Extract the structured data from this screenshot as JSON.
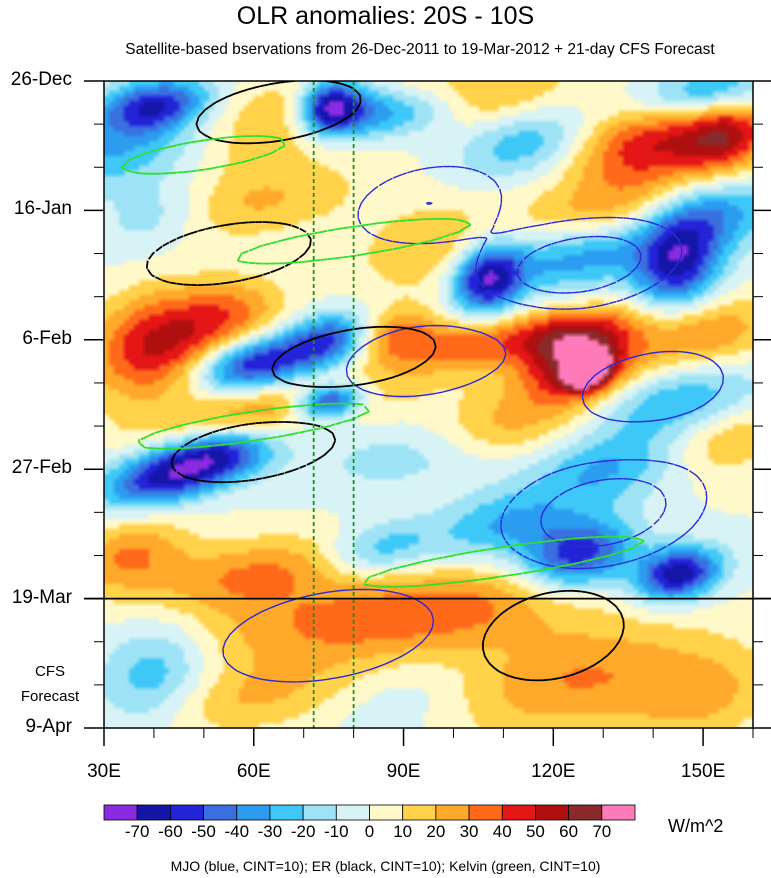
{
  "chart_data": {
    "type": "heatmap",
    "title": "OLR anomalies: 20S - 10S",
    "subtitle": "Satellite-based bservations from 26-Dec-2011 to 19-Mar-2012 + 21-day CFS Forecast",
    "x_axis": {
      "range": [
        30,
        160
      ],
      "ticks": [
        30,
        60,
        90,
        120,
        150
      ],
      "tick_labels": [
        "30E",
        "60E",
        "90E",
        "120E",
        "150E"
      ]
    },
    "y_axis": {
      "range_days": [
        0,
        105
      ],
      "ticks": [
        0,
        21,
        42,
        63,
        84,
        105
      ],
      "tick_labels": [
        "26-Dec",
        "16-Jan",
        "6-Feb",
        "27-Feb",
        "19-Mar",
        "9-Apr"
      ],
      "forecast_label": [
        "CFS",
        "Forecast"
      ],
      "observation_end_day": 84
    },
    "reference_longitudes": [
      72,
      80
    ],
    "colorbar": {
      "levels": [
        -70,
        -60,
        -50,
        -40,
        -30,
        -20,
        -10,
        0,
        10,
        20,
        30,
        40,
        50,
        60,
        70
      ],
      "level_labels": [
        "-70",
        "-60",
        "-50",
        "-40",
        "-30",
        "-20",
        "-10",
        "0",
        "10",
        "20",
        "30",
        "40",
        "50",
        "60",
        "70"
      ],
      "colors": [
        "#8a2be2",
        "#1515a8",
        "#2323d8",
        "#3a6fe0",
        "#2b9cf0",
        "#3ec8f8",
        "#9ee3f5",
        "#d8f3f5",
        "#fff8c8",
        "#ffd24a",
        "#ffa92a",
        "#ff6a1a",
        "#e41616",
        "#b00f0f",
        "#8a2a2a",
        "#ff7ab8"
      ],
      "units": "W/m^2"
    },
    "contours": [
      {
        "name": "MJO",
        "color": "#2a2ad8",
        "cint": 10
      },
      {
        "name": "ER",
        "color": "#000000",
        "cint": 10
      },
      {
        "name": "Kelvin",
        "color": "#2ee02e",
        "cint": 10
      }
    ],
    "footnote": "MJO (blue, CINT=10); ER (black, CINT=10); Kelvin (green, CINT=10)",
    "field_features": [
      {
        "lon": 30,
        "day": 12,
        "value": -30,
        "sx": 25,
        "sy": 4
      },
      {
        "lon": 40,
        "day": 4,
        "value": -60,
        "sx": 8,
        "sy": 3
      },
      {
        "lon": 60,
        "day": 8,
        "value": 30,
        "sx": 12,
        "sy": 5
      },
      {
        "lon": 75,
        "day": 4,
        "value": -60,
        "sx": 4,
        "sy": 3
      },
      {
        "lon": 80,
        "day": 5,
        "value": -40,
        "sx": 6,
        "sy": 3
      },
      {
        "lon": 92,
        "day": 5,
        "value": -40,
        "sx": 8,
        "sy": 3
      },
      {
        "lon": 100,
        "day": 3,
        "value": 30,
        "sx": 15,
        "sy": 4
      },
      {
        "lon": 115,
        "day": 10,
        "value": -30,
        "sx": 10,
        "sy": 4
      },
      {
        "lon": 140,
        "day": 10,
        "value": 50,
        "sx": 12,
        "sy": 5
      },
      {
        "lon": 155,
        "day": 9,
        "value": 40,
        "sx": 6,
        "sy": 4
      },
      {
        "lon": 150,
        "day": 2,
        "value": -40,
        "sx": 10,
        "sy": 3
      },
      {
        "lon": 60,
        "day": 20,
        "value": 20,
        "sx": 15,
        "sy": 4
      },
      {
        "lon": 40,
        "day": 22,
        "value": -20,
        "sx": 8,
        "sy": 4
      },
      {
        "lon": 107,
        "day": 32,
        "value": -70,
        "sx": 5,
        "sy": 4
      },
      {
        "lon": 95,
        "day": 27,
        "value": 20,
        "sx": 10,
        "sy": 5
      },
      {
        "lon": 130,
        "day": 22,
        "value": 30,
        "sx": 12,
        "sy": 4
      },
      {
        "lon": 145,
        "day": 30,
        "value": -60,
        "sx": 6,
        "sy": 5
      },
      {
        "lon": 125,
        "day": 28,
        "value": -40,
        "sx": 10,
        "sy": 4
      },
      {
        "lon": 150,
        "day": 22,
        "value": -40,
        "sx": 10,
        "sy": 4
      },
      {
        "lon": 40,
        "day": 43,
        "value": 50,
        "sx": 9,
        "sy": 6
      },
      {
        "lon": 55,
        "day": 38,
        "value": 30,
        "sx": 8,
        "sy": 4
      },
      {
        "lon": 60,
        "day": 46,
        "value": -60,
        "sx": 8,
        "sy": 3
      },
      {
        "lon": 75,
        "day": 42,
        "value": -50,
        "sx": 6,
        "sy": 3
      },
      {
        "lon": 88,
        "day": 41,
        "value": 30,
        "sx": 6,
        "sy": 3
      },
      {
        "lon": 100,
        "day": 43,
        "value": 30,
        "sx": 10,
        "sy": 3
      },
      {
        "lon": 125,
        "day": 46,
        "value": 60,
        "sx": 8,
        "sy": 4
      },
      {
        "lon": 127,
        "day": 47,
        "value": 75,
        "sx": 3,
        "sy": 2
      },
      {
        "lon": 122,
        "day": 41,
        "value": 40,
        "sx": 10,
        "sy": 3
      },
      {
        "lon": 150,
        "day": 41,
        "value": 30,
        "sx": 10,
        "sy": 4
      },
      {
        "lon": 65,
        "day": 53,
        "value": 30,
        "sx": 18,
        "sy": 3
      },
      {
        "lon": 75,
        "day": 52,
        "value": -70,
        "sx": 5,
        "sy": 2
      },
      {
        "lon": 52,
        "day": 61,
        "value": -60,
        "sx": 8,
        "sy": 3
      },
      {
        "lon": 40,
        "day": 65,
        "value": -50,
        "sx": 8,
        "sy": 3
      },
      {
        "lon": 95,
        "day": 60,
        "value": -20,
        "sx": 15,
        "sy": 4
      },
      {
        "lon": 145,
        "day": 52,
        "value": -30,
        "sx": 12,
        "sy": 4
      },
      {
        "lon": 110,
        "day": 56,
        "value": 30,
        "sx": 12,
        "sy": 4
      },
      {
        "lon": 130,
        "day": 63,
        "value": -30,
        "sx": 10,
        "sy": 4
      },
      {
        "lon": 155,
        "day": 58,
        "value": 20,
        "sx": 8,
        "sy": 4
      },
      {
        "lon": 35,
        "day": 77,
        "value": 30,
        "sx": 8,
        "sy": 4
      },
      {
        "lon": 60,
        "day": 80,
        "value": 30,
        "sx": 15,
        "sy": 4
      },
      {
        "lon": 85,
        "day": 76,
        "value": -30,
        "sx": 8,
        "sy": 3
      },
      {
        "lon": 125,
        "day": 77,
        "value": -60,
        "sx": 8,
        "sy": 4
      },
      {
        "lon": 145,
        "day": 80,
        "value": -70,
        "sx": 6,
        "sy": 3
      },
      {
        "lon": 110,
        "day": 72,
        "value": -30,
        "sx": 10,
        "sy": 4
      },
      {
        "lon": 100,
        "day": 86,
        "value": 30,
        "sx": 20,
        "sy": 5
      },
      {
        "lon": 70,
        "day": 88,
        "value": 20,
        "sx": 20,
        "sy": 5
      },
      {
        "lon": 40,
        "day": 96,
        "value": -30,
        "sx": 8,
        "sy": 6
      },
      {
        "lon": 60,
        "day": 100,
        "value": 20,
        "sx": 15,
        "sy": 4
      },
      {
        "lon": 90,
        "day": 100,
        "value": -10,
        "sx": 10,
        "sy": 5
      },
      {
        "lon": 125,
        "day": 97,
        "value": 30,
        "sx": 18,
        "sy": 6
      },
      {
        "lon": 150,
        "day": 100,
        "value": 20,
        "sx": 10,
        "sy": 5
      }
    ],
    "mjo_contours": [
      {
        "lon": 95,
        "day": 20,
        "value": -20,
        "sx": 12,
        "sy": 5
      },
      {
        "lon": 125,
        "day": 30,
        "value": -30,
        "sx": 14,
        "sy": 5
      },
      {
        "lon": 130,
        "day": 70,
        "value": -30,
        "sx": 14,
        "sy": 6
      },
      {
        "lon": 95,
        "day": 45,
        "value": 20,
        "sx": 14,
        "sy": 5
      },
      {
        "lon": 140,
        "day": 50,
        "value": 20,
        "sx": 12,
        "sy": 5
      },
      {
        "lon": 75,
        "day": 90,
        "value": 20,
        "sx": 18,
        "sy": 6
      }
    ],
    "er_contours": [
      {
        "lon": 65,
        "day": 5,
        "value": 20,
        "sx": 14,
        "sy": 4
      },
      {
        "lon": 55,
        "day": 28,
        "value": -20,
        "sx": 14,
        "sy": 4
      },
      {
        "lon": 80,
        "day": 45,
        "value": 20,
        "sx": 14,
        "sy": 4
      },
      {
        "lon": 60,
        "day": 60,
        "value": -20,
        "sx": 14,
        "sy": 4
      },
      {
        "lon": 120,
        "day": 90,
        "value": 20,
        "sx": 12,
        "sy": 6
      }
    ],
    "kelvin_contours": [
      {
        "lon": 50,
        "day": 12,
        "value": -20,
        "sx": 14,
        "sy": 2
      },
      {
        "lon": 80,
        "day": 26,
        "value": -20,
        "sx": 20,
        "sy": 2
      },
      {
        "lon": 60,
        "day": 56,
        "value": -20,
        "sx": 20,
        "sy": 2
      },
      {
        "lon": 110,
        "day": 78,
        "value": -20,
        "sx": 24,
        "sy": 2
      }
    ]
  }
}
